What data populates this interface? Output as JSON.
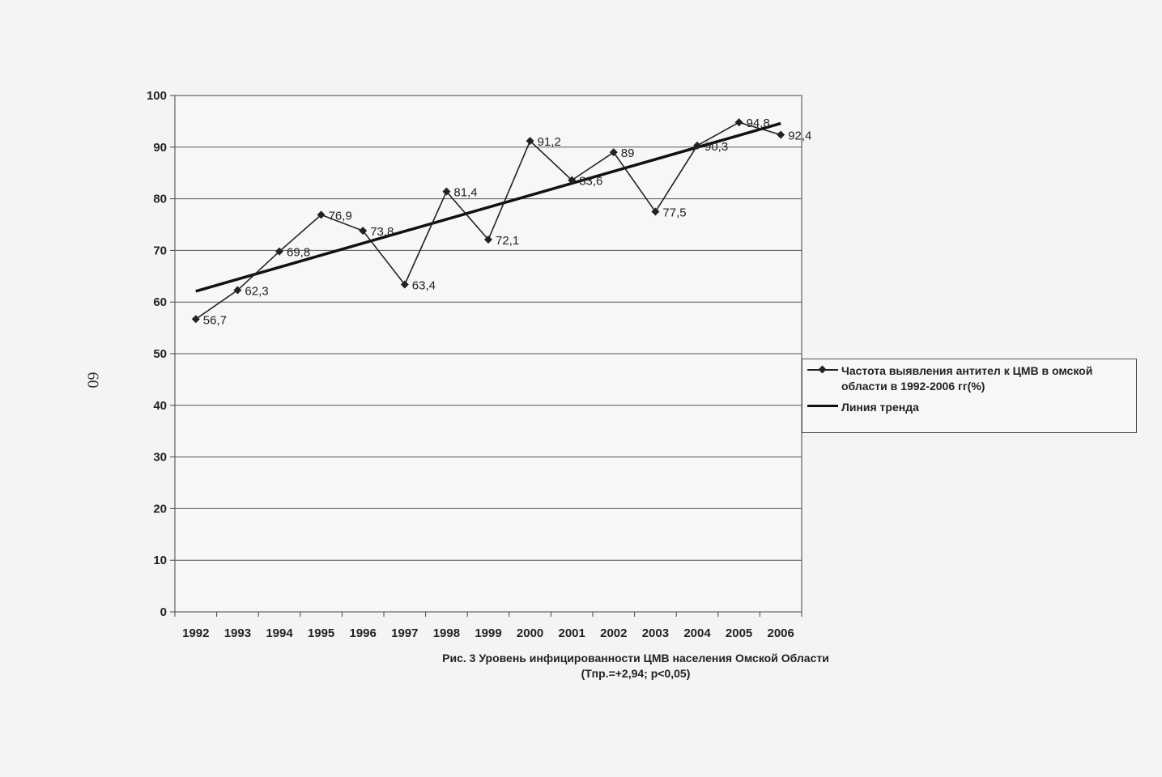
{
  "page_number": "60",
  "caption": {
    "line1": "Рис. 3 Уровень инфицированности ЦМВ населения Омской Области",
    "line2": "(Тпр.=+2,94; р<0,05)"
  },
  "legend": {
    "series_label": "Частота выявления антител к ЦМВ в омской области в 1992-2006 гг(%)",
    "trend_label": "Линия тренда"
  },
  "chart_data": {
    "type": "line",
    "categories": [
      "1992",
      "1993",
      "1994",
      "1995",
      "1996",
      "1997",
      "1998",
      "1999",
      "2000",
      "2001",
      "2002",
      "2003",
      "2004",
      "2005",
      "2006"
    ],
    "series": [
      {
        "name": "Частота выявления антител к ЦМВ в омской области в 1992-2006 гг(%)",
        "values": [
          56.7,
          62.3,
          69.8,
          76.9,
          73.8,
          63.4,
          81.4,
          72.1,
          91.2,
          83.6,
          89,
          77.5,
          90.3,
          94.8,
          92.4
        ],
        "labels": [
          "56,7",
          "62,3",
          "69,8",
          "76,9",
          "73,8",
          "63,4",
          "81,4",
          "72,1",
          "91,2",
          "83,6",
          "89",
          "77,5",
          "90,3",
          "94,8",
          "92,4"
        ]
      }
    ],
    "trend": {
      "name": "Линия тренда",
      "start": 62.1,
      "end": 94.6
    },
    "y_ticks": [
      "0",
      "10",
      "20",
      "30",
      "40",
      "50",
      "60",
      "70",
      "80",
      "90",
      "100"
    ],
    "ylim": [
      0,
      100
    ],
    "grid": true,
    "legend_position": "right",
    "colors": {
      "series": "#222222",
      "trend": "#111111",
      "grid": "#555555",
      "plot_bg": "#f7f7f7"
    }
  }
}
